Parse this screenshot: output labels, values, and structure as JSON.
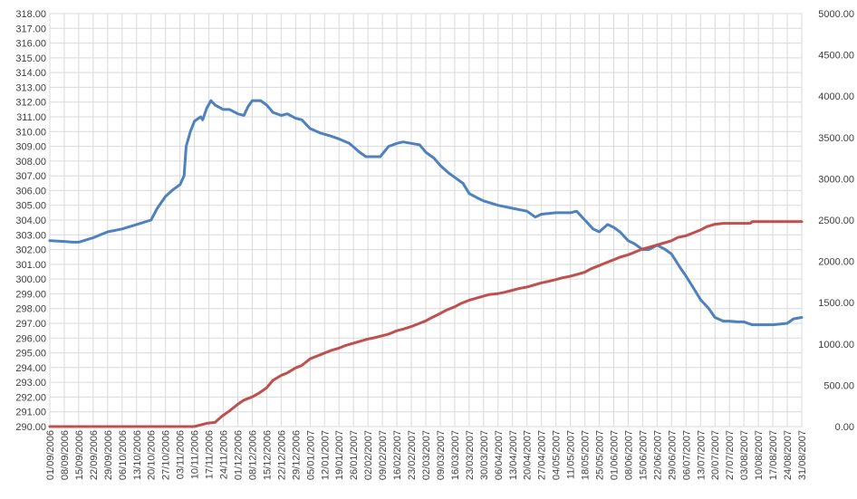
{
  "chart_data": {
    "type": "line",
    "title": "",
    "xlabel": "",
    "ylabel": "",
    "y2label": "",
    "grid": true,
    "legend": "none",
    "ylim": [
      290,
      318
    ],
    "y2lim": [
      0,
      5000
    ],
    "x_range": [
      "01/09/2006",
      "31/08/2007"
    ],
    "y_ticks": [
      "290.00",
      "291.00",
      "292.00",
      "293.00",
      "294.00",
      "295.00",
      "296.00",
      "297.00",
      "298.00",
      "299.00",
      "300.00",
      "301.00",
      "302.00",
      "303.00",
      "304.00",
      "305.00",
      "306.00",
      "307.00",
      "308.00",
      "309.00",
      "310.00",
      "311.00",
      "312.00",
      "313.00",
      "314.00",
      "315.00",
      "316.00",
      "317.00",
      "318.00"
    ],
    "y2_ticks": [
      "0.00",
      "500.00",
      "1000.00",
      "1500.00",
      "2000.00",
      "2500.00",
      "3000.00",
      "3500.00",
      "4000.00",
      "4500.00",
      "5000.00"
    ],
    "x_ticks": [
      "01/09/2006",
      "08/09/2006",
      "15/09/2006",
      "22/09/2006",
      "29/09/2006",
      "06/10/2006",
      "13/10/2006",
      "20/10/2006",
      "27/10/2006",
      "03/11/2006",
      "10/11/2006",
      "17/11/2006",
      "24/11/2006",
      "01/12/2006",
      "08/12/2006",
      "15/12/2006",
      "22/12/2006",
      "29/12/2006",
      "05/01/2007",
      "12/01/2007",
      "19/01/2007",
      "26/01/2007",
      "02/02/2007",
      "09/02/2007",
      "16/02/2007",
      "23/02/2007",
      "02/03/2007",
      "09/03/2007",
      "16/03/2007",
      "23/03/2007",
      "30/03/2007",
      "06/04/2007",
      "13/04/2007",
      "20/04/2007",
      "27/04/2007",
      "04/05/2007",
      "11/05/2007",
      "18/05/2007",
      "25/05/2007",
      "01/06/2007",
      "08/06/2007",
      "15/06/2007",
      "22/06/2007",
      "29/06/2007",
      "06/07/2007",
      "13/07/2007",
      "20/07/2007",
      "27/07/2007",
      "03/08/2007",
      "10/08/2007",
      "17/08/2007",
      "24/08/2007",
      "31/08/2007"
    ],
    "series": [
      {
        "axis": "left",
        "color": "#4f81bd",
        "points": [
          [
            "01/09/2006",
            302.6
          ],
          [
            "08/09/2006",
            302.55
          ],
          [
            "12/09/2006",
            302.5
          ],
          [
            "15/09/2006",
            302.5
          ],
          [
            "22/09/2006",
            302.8
          ],
          [
            "29/09/2006",
            303.2
          ],
          [
            "06/10/2006",
            303.4
          ],
          [
            "13/10/2006",
            303.7
          ],
          [
            "20/10/2006",
            304.0
          ],
          [
            "23/10/2006",
            304.8
          ],
          [
            "27/10/2006",
            305.6
          ],
          [
            "31/10/2006",
            306.1
          ],
          [
            "03/11/2006",
            306.4
          ],
          [
            "05/11/2006",
            307.0
          ],
          [
            "06/11/2006",
            309.0
          ],
          [
            "08/11/2006",
            310.0
          ],
          [
            "10/11/2006",
            310.7
          ],
          [
            "13/11/2006",
            311.0
          ],
          [
            "14/11/2006",
            310.8
          ],
          [
            "16/11/2006",
            311.6
          ],
          [
            "18/11/2006",
            312.1
          ],
          [
            "20/11/2006",
            311.8
          ],
          [
            "24/11/2006",
            311.5
          ],
          [
            "27/11/2006",
            311.5
          ],
          [
            "01/12/2006",
            311.2
          ],
          [
            "04/12/2006",
            311.1
          ],
          [
            "06/12/2006",
            311.7
          ],
          [
            "08/12/2006",
            312.1
          ],
          [
            "12/12/2006",
            312.1
          ],
          [
            "15/12/2006",
            311.8
          ],
          [
            "18/12/2006",
            311.3
          ],
          [
            "22/12/2006",
            311.1
          ],
          [
            "25/12/2006",
            311.2
          ],
          [
            "29/12/2006",
            310.9
          ],
          [
            "01/01/2007",
            310.8
          ],
          [
            "05/01/2007",
            310.2
          ],
          [
            "10/01/2007",
            309.9
          ],
          [
            "15/01/2007",
            309.7
          ],
          [
            "19/01/2007",
            309.5
          ],
          [
            "24/01/2007",
            309.2
          ],
          [
            "29/01/2007",
            308.6
          ],
          [
            "01/02/2007",
            308.3
          ],
          [
            "05/02/2007",
            308.3
          ],
          [
            "08/02/2007",
            308.3
          ],
          [
            "12/02/2007",
            309.0
          ],
          [
            "16/02/2007",
            309.2
          ],
          [
            "19/02/2007",
            309.3
          ],
          [
            "23/02/2007",
            309.2
          ],
          [
            "27/02/2007",
            309.1
          ],
          [
            "02/03/2007",
            308.6
          ],
          [
            "06/03/2007",
            308.2
          ],
          [
            "09/03/2007",
            307.7
          ],
          [
            "13/03/2007",
            307.2
          ],
          [
            "16/03/2007",
            306.9
          ],
          [
            "20/03/2007",
            306.5
          ],
          [
            "23/03/2007",
            305.8
          ],
          [
            "27/03/2007",
            305.5
          ],
          [
            "30/03/2007",
            305.3
          ],
          [
            "06/04/2007",
            305.0
          ],
          [
            "13/04/2007",
            304.8
          ],
          [
            "20/04/2007",
            304.6
          ],
          [
            "24/04/2007",
            304.2
          ],
          [
            "27/04/2007",
            304.4
          ],
          [
            "04/05/2007",
            304.5
          ],
          [
            "11/05/2007",
            304.5
          ],
          [
            "14/05/2007",
            304.6
          ],
          [
            "18/05/2007",
            304.0
          ],
          [
            "22/05/2007",
            303.4
          ],
          [
            "25/05/2007",
            303.2
          ],
          [
            "29/05/2007",
            303.7
          ],
          [
            "01/06/2007",
            303.5
          ],
          [
            "04/06/2007",
            303.2
          ],
          [
            "08/06/2007",
            302.6
          ],
          [
            "11/06/2007",
            302.4
          ],
          [
            "15/06/2007",
            302.0
          ],
          [
            "18/06/2007",
            302.0
          ],
          [
            "22/06/2007",
            302.3
          ],
          [
            "26/06/2007",
            302.0
          ],
          [
            "29/06/2007",
            301.7
          ],
          [
            "03/07/2007",
            300.8
          ],
          [
            "06/07/2007",
            300.2
          ],
          [
            "10/07/2007",
            299.3
          ],
          [
            "13/07/2007",
            298.6
          ],
          [
            "17/07/2007",
            298.0
          ],
          [
            "20/07/2007",
            297.4
          ],
          [
            "24/07/2007",
            297.15
          ],
          [
            "27/07/2007",
            297.15
          ],
          [
            "31/07/2007",
            297.1
          ],
          [
            "03/08/2007",
            297.1
          ],
          [
            "07/08/2007",
            296.9
          ],
          [
            "10/08/2007",
            296.9
          ],
          [
            "17/08/2007",
            296.9
          ],
          [
            "24/08/2007",
            297.0
          ],
          [
            "27/08/2007",
            297.3
          ],
          [
            "31/08/2007",
            297.4
          ]
        ]
      },
      {
        "axis": "right",
        "color": "#c0504d",
        "points": [
          [
            "01/09/2006",
            0
          ],
          [
            "10/11/2006",
            0
          ],
          [
            "13/11/2006",
            20
          ],
          [
            "16/11/2006",
            40
          ],
          [
            "20/11/2006",
            50
          ],
          [
            "23/11/2006",
            120
          ],
          [
            "27/11/2006",
            190
          ],
          [
            "01/12/2006",
            270
          ],
          [
            "04/12/2006",
            320
          ],
          [
            "08/12/2006",
            360
          ],
          [
            "11/12/2006",
            400
          ],
          [
            "15/12/2006",
            470
          ],
          [
            "18/12/2006",
            560
          ],
          [
            "22/12/2006",
            620
          ],
          [
            "25/12/2006",
            650
          ],
          [
            "29/12/2006",
            710
          ],
          [
            "01/01/2007",
            740
          ],
          [
            "05/01/2007",
            820
          ],
          [
            "08/01/2007",
            850
          ],
          [
            "12/01/2007",
            890
          ],
          [
            "15/01/2007",
            920
          ],
          [
            "19/01/2007",
            950
          ],
          [
            "22/01/2007",
            980
          ],
          [
            "26/01/2007",
            1010
          ],
          [
            "02/02/2007",
            1060
          ],
          [
            "05/02/2007",
            1075
          ],
          [
            "09/02/2007",
            1100
          ],
          [
            "12/02/2007",
            1120
          ],
          [
            "16/02/2007",
            1160
          ],
          [
            "19/02/2007",
            1180
          ],
          [
            "23/02/2007",
            1210
          ],
          [
            "26/02/2007",
            1240
          ],
          [
            "02/03/2007",
            1280
          ],
          [
            "05/03/2007",
            1320
          ],
          [
            "09/03/2007",
            1370
          ],
          [
            "12/03/2007",
            1410
          ],
          [
            "16/03/2007",
            1450
          ],
          [
            "19/03/2007",
            1490
          ],
          [
            "23/03/2007",
            1530
          ],
          [
            "26/03/2007",
            1550
          ],
          [
            "30/03/2007",
            1580
          ],
          [
            "02/04/2007",
            1600
          ],
          [
            "06/04/2007",
            1610
          ],
          [
            "09/04/2007",
            1625
          ],
          [
            "13/04/2007",
            1650
          ],
          [
            "16/04/2007",
            1670
          ],
          [
            "20/04/2007",
            1690
          ],
          [
            "23/04/2007",
            1710
          ],
          [
            "27/04/2007",
            1740
          ],
          [
            "30/04/2007",
            1755
          ],
          [
            "04/05/2007",
            1780
          ],
          [
            "07/05/2007",
            1800
          ],
          [
            "11/05/2007",
            1820
          ],
          [
            "14/05/2007",
            1840
          ],
          [
            "18/05/2007",
            1870
          ],
          [
            "21/05/2007",
            1910
          ],
          [
            "25/05/2007",
            1950
          ],
          [
            "28/05/2007",
            1980
          ],
          [
            "01/06/2007",
            2020
          ],
          [
            "04/06/2007",
            2050
          ],
          [
            "08/06/2007",
            2080
          ],
          [
            "11/06/2007",
            2110
          ],
          [
            "15/06/2007",
            2150
          ],
          [
            "18/06/2007",
            2170
          ],
          [
            "22/06/2007",
            2200
          ],
          [
            "25/06/2007",
            2220
          ],
          [
            "29/06/2007",
            2250
          ],
          [
            "02/07/2007",
            2290
          ],
          [
            "06/07/2007",
            2310
          ],
          [
            "09/07/2007",
            2340
          ],
          [
            "13/07/2007",
            2380
          ],
          [
            "16/07/2007",
            2420
          ],
          [
            "20/07/2007",
            2450
          ],
          [
            "24/07/2007",
            2460
          ],
          [
            "27/07/2007",
            2460
          ],
          [
            "03/08/2007",
            2460
          ],
          [
            "06/08/2007",
            2460
          ],
          [
            "07/08/2007",
            2480
          ],
          [
            "10/08/2007",
            2480
          ],
          [
            "17/08/2007",
            2480
          ],
          [
            "24/08/2007",
            2480
          ],
          [
            "31/08/2007",
            2480
          ]
        ]
      }
    ]
  }
}
